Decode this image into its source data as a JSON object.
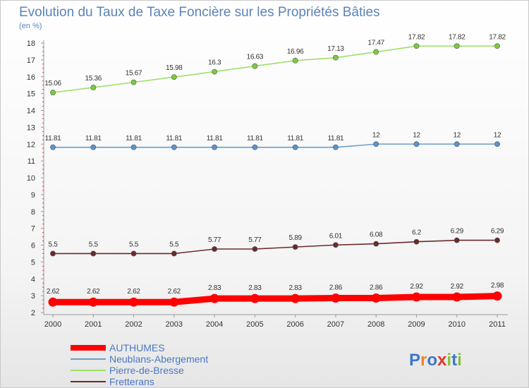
{
  "chart_data": {
    "type": "line",
    "title": "Evolution du Taux de Taxe Foncière sur les Propriétés Bâties",
    "ylabel": "(en %)",
    "xlabel": "",
    "ylim": [
      2,
      18
    ],
    "yticks": [
      2,
      3,
      4,
      5,
      6,
      7,
      8,
      9,
      10,
      11,
      12,
      13,
      14,
      15,
      16,
      17,
      18
    ],
    "categories": [
      "2000",
      "2001",
      "2002",
      "2003",
      "2004",
      "2005",
      "2006",
      "2007",
      "2008",
      "2009",
      "2010",
      "2011"
    ],
    "grid": false,
    "legend_position": "bottom-left",
    "series": [
      {
        "name": "AUTHUMES",
        "color": "#ff0000",
        "emphasis": true,
        "values": [
          2.62,
          2.62,
          2.62,
          2.62,
          2.83,
          2.83,
          2.83,
          2.86,
          2.86,
          2.92,
          2.92,
          2.98
        ],
        "labels": [
          "2.62",
          "2.62",
          "2.62",
          "2.62",
          "2.83",
          "2.83",
          "2.83",
          "2.86",
          "2.86",
          "2.92",
          "2.92",
          "2.98"
        ]
      },
      {
        "name": "Neublans-Abergement",
        "color": "#6a9fd0",
        "dot_color": "#5a93cf",
        "values": [
          11.81,
          11.81,
          11.81,
          11.81,
          11.81,
          11.81,
          11.81,
          11.81,
          12,
          12,
          12,
          12
        ],
        "labels": [
          "11.81",
          "11.81",
          "11.81",
          "11.81",
          "11.81",
          "11.81",
          "11.81",
          "11.81",
          "12",
          "12",
          "12",
          "12"
        ]
      },
      {
        "name": "Pierre-de-Bresse",
        "color": "#9ee06a",
        "dot_color": "#7acb3e",
        "values": [
          15.06,
          15.36,
          15.67,
          15.98,
          16.3,
          16.63,
          16.96,
          17.13,
          17.47,
          17.82,
          17.82,
          17.82
        ],
        "labels": [
          "15.06",
          "15.36",
          "15.67",
          "15.98",
          "16.3",
          "16.63",
          "16.96",
          "17.13",
          "17.47",
          "17.82",
          "17.82",
          "17.82"
        ]
      },
      {
        "name": "Fretterans",
        "color": "#6b2a2a",
        "dot_color": "#6b2a2a",
        "values": [
          5.5,
          5.5,
          5.5,
          5.5,
          5.77,
          5.77,
          5.89,
          6.01,
          6.08,
          6.2,
          6.29,
          6.29
        ],
        "labels": [
          "5.5",
          "5.5",
          "5.5",
          "5.5",
          "5.77",
          "5.77",
          "5.89",
          "6.01",
          "6.08",
          "6.2",
          "6.29",
          "6.29"
        ]
      }
    ]
  },
  "branding": {
    "logo_letters": [
      "P",
      "r",
      "o",
      "x",
      "i",
      "t",
      "i"
    ],
    "logo_colors": [
      "#3a78c8",
      "#e8862a",
      "#3a78c8",
      "#d83b2a",
      "#8bbd3a",
      "#3a78c8",
      "#8bbd3a"
    ]
  }
}
